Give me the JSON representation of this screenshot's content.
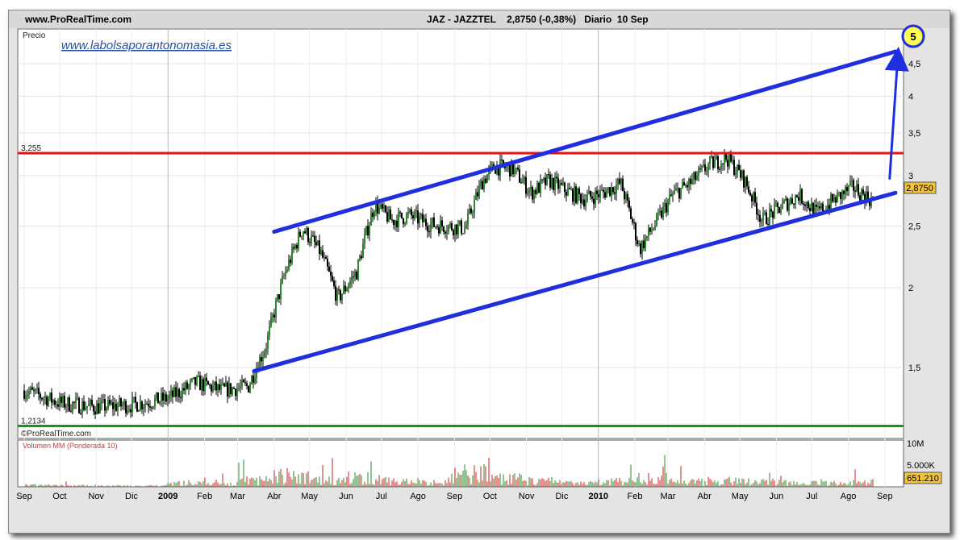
{
  "header": {
    "site": "www.ProRealTime.com",
    "instrument": "JAZ - JAZZTEL",
    "price_change": "2,8750 (-0,38%)",
    "period": "Diario",
    "date": "10 Sep"
  },
  "watermark_url": "www.labolsaporantonomasia.es",
  "copyright": "©ProRealTime.com",
  "price_panel_label": "Precio",
  "volume_panel_label": "Volumen MM (Ponderada 10)",
  "annotation_target": "5",
  "colors": {
    "channel": "#1f2fe0",
    "resistance": "#ee1111",
    "support": "#119911",
    "candle_up": "#2a8a2a",
    "candle_down": "#cc2222",
    "last_badge": "#f3c33a",
    "target_circle": "#ffff55"
  },
  "chart_data": [
    {
      "type": "candlestick",
      "title": "JAZ - JAZZTEL",
      "ylabel": "Precio",
      "scale": "log",
      "ylim": [
        1.16,
        5.1
      ],
      "y_ticks": [
        "4,5",
        "4",
        "3,5",
        "3",
        "2,5",
        "2",
        "1,5"
      ],
      "x_ticks": [
        "Sep",
        "Oct",
        "Nov",
        "Dic",
        "2009",
        "Feb",
        "Mar",
        "Abr",
        "May",
        "Jun",
        "Jul",
        "Ago",
        "Sep",
        "Oct",
        "Nov",
        "Dic",
        "2010",
        "Feb",
        "Mar",
        "Abr",
        "May",
        "Jun",
        "Jul",
        "Ago",
        "Sep"
      ],
      "x_range": [
        "2008-09-01",
        "2010-09-10"
      ],
      "last_value": "2,8750",
      "horizontal_levels": [
        {
          "label": "3,255",
          "value": 3.255,
          "color": "resistance"
        },
        {
          "label": "1,2134",
          "value": 1.2134,
          "color": "support"
        }
      ],
      "channel_lines": [
        {
          "name": "upper",
          "from": [
            "2009-04-01",
            2.45
          ],
          "to": [
            "2010-09-10",
            4.7
          ]
        },
        {
          "name": "lower",
          "from": [
            "2009-03-15",
            1.48
          ],
          "to": [
            "2010-09-10",
            2.82
          ]
        }
      ],
      "projection_arrow": {
        "from": [
          "2010-09-05",
          2.96
        ],
        "to": [
          "2010-09-12",
          4.62
        ],
        "label": "5"
      },
      "close_series": [
        {
          "date": "2008-09-01",
          "close": 1.38
        },
        {
          "date": "2008-10-01",
          "close": 1.32
        },
        {
          "date": "2008-11-01",
          "close": 1.3
        },
        {
          "date": "2008-12-01",
          "close": 1.31
        },
        {
          "date": "2009-01-01",
          "close": 1.34
        },
        {
          "date": "2009-01-25",
          "close": 1.42
        },
        {
          "date": "2009-02-15",
          "close": 1.38
        },
        {
          "date": "2009-03-10",
          "close": 1.4
        },
        {
          "date": "2009-03-25",
          "close": 1.62
        },
        {
          "date": "2009-04-10",
          "close": 2.1
        },
        {
          "date": "2009-04-25",
          "close": 2.48
        },
        {
          "date": "2009-05-10",
          "close": 2.28
        },
        {
          "date": "2009-05-25",
          "close": 1.92
        },
        {
          "date": "2009-06-10",
          "close": 2.12
        },
        {
          "date": "2009-06-25",
          "close": 2.7
        },
        {
          "date": "2009-07-10",
          "close": 2.55
        },
        {
          "date": "2009-07-25",
          "close": 2.6
        },
        {
          "date": "2009-08-10",
          "close": 2.52
        },
        {
          "date": "2009-08-25",
          "close": 2.5
        },
        {
          "date": "2009-09-10",
          "close": 2.48
        },
        {
          "date": "2009-09-25",
          "close": 2.95
        },
        {
          "date": "2009-10-05",
          "close": 3.1
        },
        {
          "date": "2009-10-20",
          "close": 3.08
        },
        {
          "date": "2009-11-05",
          "close": 2.82
        },
        {
          "date": "2009-11-20",
          "close": 2.95
        },
        {
          "date": "2009-12-05",
          "close": 2.84
        },
        {
          "date": "2009-12-20",
          "close": 2.76
        },
        {
          "date": "2010-01-05",
          "close": 2.82
        },
        {
          "date": "2010-01-20",
          "close": 2.92
        },
        {
          "date": "2010-02-05",
          "close": 2.3
        },
        {
          "date": "2010-02-20",
          "close": 2.55
        },
        {
          "date": "2010-03-05",
          "close": 2.8
        },
        {
          "date": "2010-03-20",
          "close": 2.92
        },
        {
          "date": "2010-04-05",
          "close": 3.12
        },
        {
          "date": "2010-04-20",
          "close": 3.2
        },
        {
          "date": "2010-05-05",
          "close": 2.95
        },
        {
          "date": "2010-05-20",
          "close": 2.55
        },
        {
          "date": "2010-06-05",
          "close": 2.68
        },
        {
          "date": "2010-06-20",
          "close": 2.8
        },
        {
          "date": "2010-07-05",
          "close": 2.62
        },
        {
          "date": "2010-07-20",
          "close": 2.75
        },
        {
          "date": "2010-08-05",
          "close": 2.88
        },
        {
          "date": "2010-08-20",
          "close": 2.75
        },
        {
          "date": "2010-09-01",
          "close": 2.82
        },
        {
          "date": "2010-09-10",
          "close": 2.875
        }
      ]
    },
    {
      "type": "bar",
      "title": "Volumen MM (Ponderada 10)",
      "y_ticks": [
        "10M",
        "5.000K"
      ],
      "last_value": "651.210",
      "monthly_avg_volume_k": [
        {
          "month": "2008-09",
          "value": 350
        },
        {
          "month": "2008-10",
          "value": 300
        },
        {
          "month": "2008-11",
          "value": 250
        },
        {
          "month": "2008-12",
          "value": 240
        },
        {
          "month": "2009-01",
          "value": 900
        },
        {
          "month": "2009-02",
          "value": 700
        },
        {
          "month": "2009-03",
          "value": 1500
        },
        {
          "month": "2009-04",
          "value": 2400
        },
        {
          "month": "2009-05",
          "value": 1500
        },
        {
          "month": "2009-06",
          "value": 2000
        },
        {
          "month": "2009-07",
          "value": 1300
        },
        {
          "month": "2009-08",
          "value": 900
        },
        {
          "month": "2009-09",
          "value": 3000
        },
        {
          "month": "2009-10",
          "value": 1800
        },
        {
          "month": "2009-11",
          "value": 1300
        },
        {
          "month": "2009-12",
          "value": 900
        },
        {
          "month": "2010-01",
          "value": 1200
        },
        {
          "month": "2010-02",
          "value": 1800
        },
        {
          "month": "2010-03",
          "value": 1100
        },
        {
          "month": "2010-04",
          "value": 1300
        },
        {
          "month": "2010-05",
          "value": 1100
        },
        {
          "month": "2010-06",
          "value": 900
        },
        {
          "month": "2010-07",
          "value": 800
        },
        {
          "month": "2010-08",
          "value": 1000
        },
        {
          "month": "2010-09",
          "value": 650
        }
      ]
    }
  ]
}
